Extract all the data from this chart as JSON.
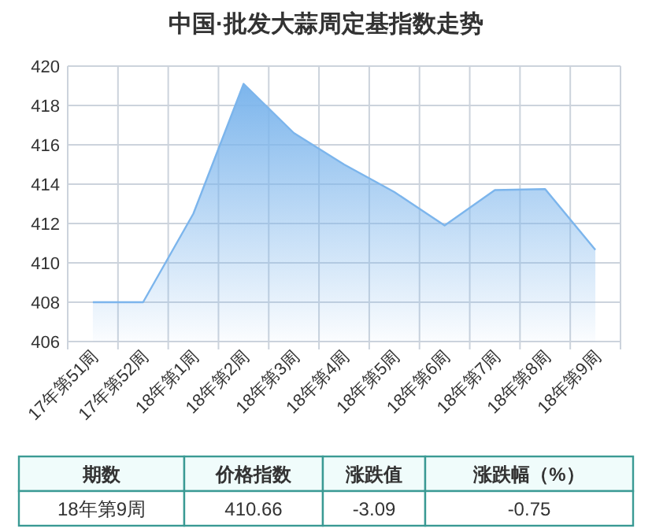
{
  "chart_data": {
    "type": "area",
    "title": "中国·批发大蒜周定基指数走势",
    "categories": [
      "17年第51周",
      "17年第52周",
      "18年第1周",
      "18年第2周",
      "18年第3周",
      "18年第4周",
      "18年第5周",
      "18年第6周",
      "18年第7周",
      "18年第8周",
      "18年第9周"
    ],
    "values": [
      408.0,
      408.0,
      412.5,
      419.1,
      416.6,
      415.0,
      413.6,
      411.9,
      413.7,
      413.75,
      410.66
    ],
    "color": "#7cb5ec",
    "ylim": [
      406,
      420
    ],
    "yticks": [
      406,
      408,
      410,
      412,
      414,
      416,
      418,
      420
    ],
    "grid": true,
    "annotations": [
      "期数",
      "价格指数",
      "涨跌值",
      "涨跌幅（%）",
      "18年第9周",
      "410.66",
      "-3.09",
      "-0.75"
    ]
  }
}
